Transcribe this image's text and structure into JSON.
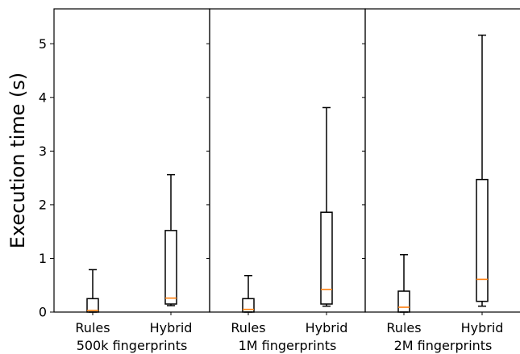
{
  "chart_data": {
    "type": "box",
    "ylabel": "Execution time (s)",
    "ylim": [
      0,
      5.65
    ],
    "yticks": [
      "0",
      "1",
      "2",
      "3",
      "4",
      "5"
    ],
    "colors": {
      "box": "#000000",
      "median": "#ff7f0e"
    },
    "panels": [
      {
        "label": "500k fingerprints",
        "boxes": [
          {
            "category": "Rules",
            "whisker_low": 0.0,
            "q1": 0.0,
            "median": 0.03,
            "q3": 0.25,
            "whisker_high": 0.79
          },
          {
            "category": "Hybrid",
            "whisker_low": 0.12,
            "q1": 0.15,
            "median": 0.26,
            "q3": 1.52,
            "whisker_high": 2.56
          }
        ]
      },
      {
        "label": "1M fingerprints",
        "boxes": [
          {
            "category": "Rules",
            "whisker_low": 0.0,
            "q1": 0.0,
            "median": 0.05,
            "q3": 0.25,
            "whisker_high": 0.68
          },
          {
            "category": "Hybrid",
            "whisker_low": 0.11,
            "q1": 0.15,
            "median": 0.42,
            "q3": 1.86,
            "whisker_high": 3.81
          }
        ]
      },
      {
        "label": "2M fingerprints",
        "boxes": [
          {
            "category": "Rules",
            "whisker_low": 0.0,
            "q1": 0.0,
            "median": 0.09,
            "q3": 0.39,
            "whisker_high": 1.07
          },
          {
            "category": "Hybrid",
            "whisker_low": 0.11,
            "q1": 0.2,
            "median": 0.61,
            "q3": 2.47,
            "whisker_high": 5.16
          }
        ]
      }
    ]
  }
}
